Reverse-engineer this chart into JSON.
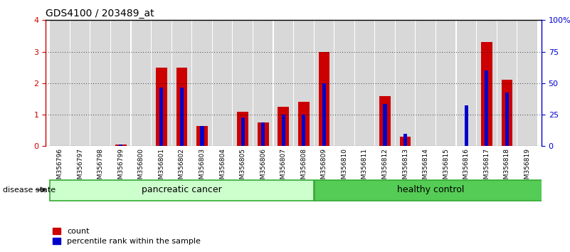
{
  "title": "GDS4100 / 203489_at",
  "samples": [
    "GSM356796",
    "GSM356797",
    "GSM356798",
    "GSM356799",
    "GSM356800",
    "GSM356801",
    "GSM356802",
    "GSM356803",
    "GSM356804",
    "GSM356805",
    "GSM356806",
    "GSM356807",
    "GSM356808",
    "GSM356809",
    "GSM356810",
    "GSM356811",
    "GSM356812",
    "GSM356813",
    "GSM356814",
    "GSM356815",
    "GSM356816",
    "GSM356817",
    "GSM356818",
    "GSM356819"
  ],
  "red_values": [
    0.0,
    0.0,
    0.0,
    0.05,
    0.0,
    2.5,
    2.5,
    0.65,
    0.0,
    1.1,
    0.75,
    1.25,
    1.4,
    3.0,
    0.0,
    0.0,
    1.6,
    0.3,
    0.0,
    0.0,
    0.0,
    3.3,
    2.1,
    0.0
  ],
  "blue_values": [
    0.0,
    0.0,
    0.0,
    0.05,
    0.0,
    1.85,
    1.85,
    0.65,
    0.0,
    0.9,
    0.75,
    1.0,
    1.0,
    2.0,
    0.0,
    0.0,
    1.35,
    0.4,
    0.0,
    0.0,
    1.3,
    2.4,
    1.7,
    0.0
  ],
  "group1_label": "pancreatic cancer",
  "group2_label": "healthy control",
  "group1_count": 13,
  "group2_count": 11,
  "disease_state_label": "disease state",
  "ylim_left": [
    0,
    4
  ],
  "ylim_right": [
    0,
    100
  ],
  "yticks_left": [
    0,
    1,
    2,
    3,
    4
  ],
  "yticks_right": [
    0,
    25,
    50,
    75,
    100
  ],
  "yticklabels_right": [
    "0",
    "25",
    "50",
    "75",
    "100%"
  ],
  "red_color": "#cc0000",
  "blue_color": "#0000cc",
  "group1_bg": "#ccffcc",
  "group2_bg": "#55cc55",
  "bar_bg": "#d8d8d8",
  "legend_count": "count",
  "legend_pct": "percentile rank within the sample",
  "bar_width": 0.55,
  "blue_bar_width": 0.18
}
